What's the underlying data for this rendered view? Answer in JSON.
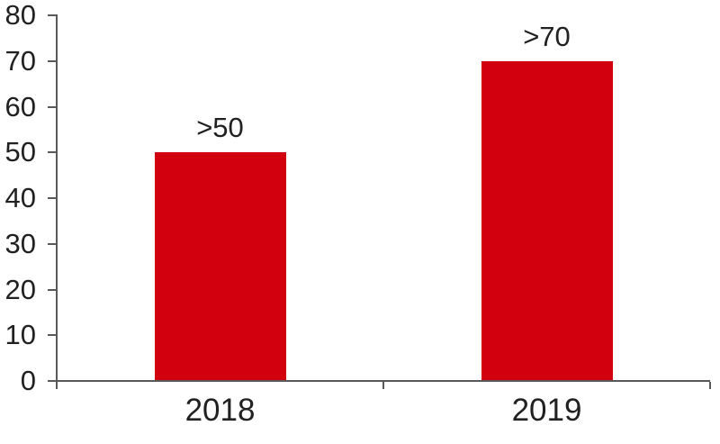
{
  "chart_data": {
    "type": "bar",
    "title": "",
    "xlabel": "",
    "ylabel": "",
    "categories": [
      "2018",
      "2019"
    ],
    "values": [
      50,
      70
    ],
    "bar_labels": [
      ">50",
      ">70"
    ],
    "yticks": [
      0,
      10,
      20,
      30,
      40,
      50,
      60,
      70,
      80
    ],
    "ylim": [
      0,
      80
    ],
    "grid": false,
    "legend": "none",
    "bar_color": "#d2000f",
    "axis_color": "#595959",
    "text_color": "#212121"
  }
}
